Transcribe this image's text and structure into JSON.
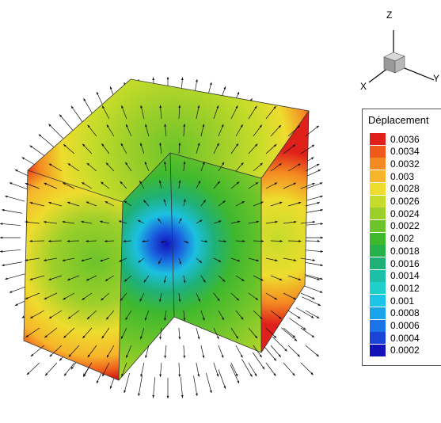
{
  "axes": {
    "z": "Z",
    "x": "X",
    "y": "Y"
  },
  "legend": {
    "title": "Déplacement",
    "entries": [
      {
        "value": "0.0036",
        "color": "#e0201a"
      },
      {
        "value": "0.0034",
        "color": "#ef5a1c"
      },
      {
        "value": "0.0032",
        "color": "#f48a22"
      },
      {
        "value": "0.003",
        "color": "#f6b52a"
      },
      {
        "value": "0.0028",
        "color": "#eedc2e"
      },
      {
        "value": "0.0026",
        "color": "#c6dc2a"
      },
      {
        "value": "0.0024",
        "color": "#9ccf2a"
      },
      {
        "value": "0.0022",
        "color": "#6cc42a"
      },
      {
        "value": "0.002",
        "color": "#3fb82e"
      },
      {
        "value": "0.0018",
        "color": "#25b04a"
      },
      {
        "value": "0.0016",
        "color": "#1fb078"
      },
      {
        "value": "0.0014",
        "color": "#1cc0a8"
      },
      {
        "value": "0.0012",
        "color": "#1ed0cc"
      },
      {
        "value": "0.001",
        "color": "#1cc4e6"
      },
      {
        "value": "0.0008",
        "color": "#1aa4ea"
      },
      {
        "value": "0.0006",
        "color": "#1a74e8"
      },
      {
        "value": "0.0004",
        "color": "#1a44d8"
      },
      {
        "value": "0.0002",
        "color": "#1212b8"
      }
    ]
  }
}
